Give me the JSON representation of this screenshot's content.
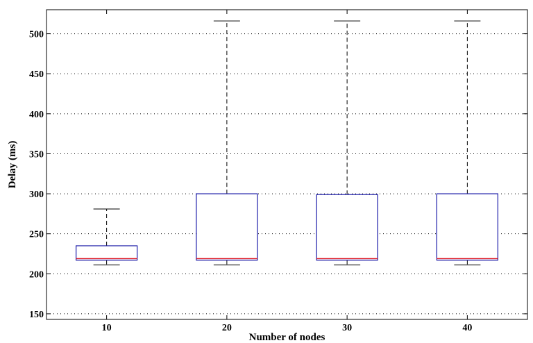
{
  "chart_data": {
    "type": "box",
    "xlabel": "Number of nodes",
    "ylabel": "Delay (ms)",
    "ylim": [
      143,
      530
    ],
    "yticks": [
      150,
      200,
      250,
      300,
      350,
      400,
      450,
      500
    ],
    "grid": true,
    "categories": [
      "10",
      "20",
      "30",
      "40"
    ],
    "boxes": [
      {
        "category": "10",
        "whisker_low": 211,
        "q1": 217,
        "median": 219,
        "q3": 235,
        "whisker_high": 281
      },
      {
        "category": "20",
        "whisker_low": 211,
        "q1": 217,
        "median": 219,
        "q3": 300,
        "whisker_high": 516
      },
      {
        "category": "30",
        "whisker_low": 211,
        "q1": 217,
        "median": 219,
        "q3": 299,
        "whisker_high": 516
      },
      {
        "category": "40",
        "whisker_low": 211,
        "q1": 217,
        "median": 219,
        "q3": 300,
        "whisker_high": 516
      }
    ],
    "colors": {
      "box": "#1a1aa8",
      "median": "#e0202a",
      "whisker": "#000000",
      "grid": "#000000",
      "axis": "#000000"
    }
  }
}
